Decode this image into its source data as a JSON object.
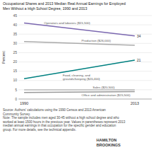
{
  "chart_data": {
    "type": "line",
    "title": "Occupational Shares and 2013 Median Real Annual Earnings for Employed\nMen Without a High School Degree, 1990 and 2013",
    "categories": [
      "1990",
      "2013"
    ],
    "ylabel": "Percent",
    "ylim": [
      0,
      45
    ],
    "yticks": [
      0,
      5,
      10,
      15,
      20,
      25,
      30,
      35,
      40,
      45
    ],
    "grid": true,
    "series": [
      {
        "name": "Operators and laborers ($15,500)",
        "color": "#7b68b0",
        "values": [
          41,
          34
        ],
        "value_labels": [
          null,
          "34"
        ]
      },
      {
        "name": "Production ($26,000)",
        "color": "#aaaaaa",
        "values": [
          31,
          29
        ]
      },
      {
        "name": "Food, cleaning, and\ngrounds/keeping ($20,400)",
        "color": "#008080",
        "values": [
          11,
          21
        ],
        "value_labels": [
          null,
          "21"
        ]
      },
      {
        "name": "Sales ($20,500)",
        "color": "#bbbbbb",
        "values": [
          5,
          5
        ]
      },
      {
        "name": "Office and administration ($15,500)",
        "color": "#999999",
        "values": [
          3.5,
          4
        ]
      }
    ],
    "source": "Source: Authors' calculations using the 1990 Census and 2013 American\nCommunity Survey.\nNote: The sample includes men aged 30-45 without a high school degree and who\nworked at least 1500 hours in the previous year. Values in parentheses represent 2013\nmedian annual earnings in that occupation for the specific gender and education\ngroup. For more details, see the technical appendix.",
    "annotations": [
      "HAMILTON",
      "BROOKINGS"
    ]
  }
}
